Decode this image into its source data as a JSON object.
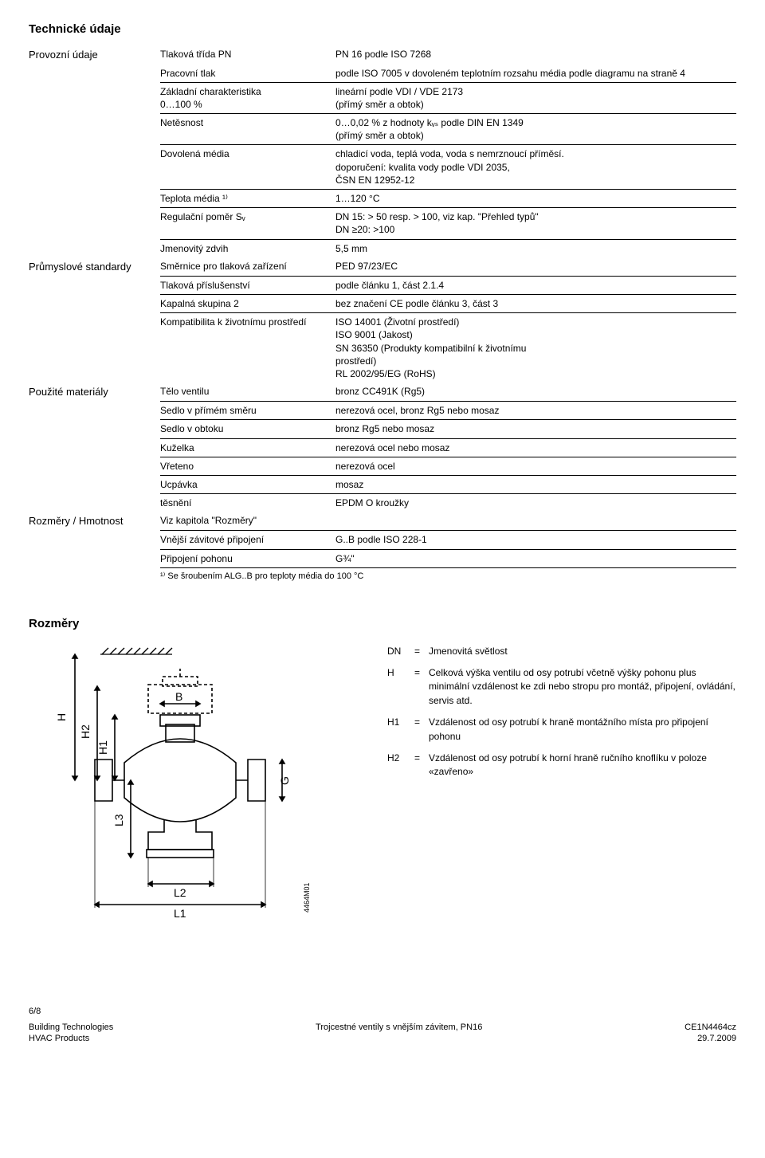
{
  "title_technicke": "Technické údaje",
  "groups": {
    "provozni": {
      "label": "Provozní údaje",
      "rows": [
        {
          "param": "Tlaková třída PN",
          "val": "PN 16 podle ISO 7268",
          "sep": false
        },
        {
          "param": "Pracovní tlak",
          "val": "podle ISO 7005 v dovoleném teplotním rozsahu média podle diagramu na straně 4",
          "sep": true
        },
        {
          "param": "Základní charakteristika\n0…100 %",
          "val": "lineární podle VDI / VDE 2173\n(přímý směr a obtok)",
          "sep": true
        },
        {
          "param": "Netěsnost",
          "val": "0…0,02 % z hodnoty kᵥₛ podle DIN EN 1349\n(přímý směr a obtok)",
          "sep": true
        },
        {
          "param": "Dovolená média",
          "val": "chladicí voda, teplá voda, voda s nemrznoucí příměsí.\ndoporučení: kvalita vody podle VDI 2035,\nČSN EN 12952-12",
          "sep": true
        },
        {
          "param": "Teplota média ¹⁾",
          "val": "1…120 °C",
          "sep": true
        },
        {
          "param": "Regulační poměr Sᵥ",
          "val": "DN 15:      > 50 resp. > 100, viz kap. \"Přehled typů\"\nDN ≥20:    >100",
          "sep": true
        },
        {
          "param": "Jmenovitý zdvih",
          "val": "5,5 mm",
          "sep": false
        }
      ]
    },
    "prumyslove": {
      "label": "Průmyslové standardy",
      "rows": [
        {
          "param": "Směrnice pro tlaková zařízení",
          "val": "PED 97/23/EC",
          "sep": true
        },
        {
          "param": "Tlaková příslušenství",
          "val": "podle článku 1, část 2.1.4",
          "sep": true
        },
        {
          "param": "Kapalná skupina 2",
          "val": "bez značení CE podle článku 3, část 3",
          "sep": true
        },
        {
          "param": "Kompatibilita k životnímu prostředí",
          "val": "ISO 14001 (Životní prostředí)\nISO 9001 (Jakost)\nSN 36350 (Produkty kompatibilní k životnímu\n       prostředí)\nRL 2002/95/EG (RoHS)",
          "sep": false
        }
      ]
    },
    "materialy": {
      "label": "Použité materiály",
      "rows": [
        {
          "param": "Tělo ventilu",
          "val": "bronz CC491K (Rg5)",
          "sep": true
        },
        {
          "param": "Sedlo v přímém směru",
          "val": "nerezová ocel, bronz Rg5 nebo mosaz",
          "sep": true
        },
        {
          "param": "Sedlo v obtoku",
          "val": "bronz Rg5 nebo mosaz",
          "sep": true
        },
        {
          "param": "Kuželka",
          "val": "nerezová ocel nebo mosaz",
          "sep": true
        },
        {
          "param": "Vřeteno",
          "val": "nerezová ocel",
          "sep": true
        },
        {
          "param": "Ucpávka",
          "val": "mosaz",
          "sep": true
        },
        {
          "param": "            těsnění",
          "val": "EPDM O kroužky",
          "sep": false
        }
      ]
    },
    "rozmery": {
      "label": "Rozměry / Hmotnost",
      "rows": [
        {
          "param": "Viz kapitola \"Rozměry\"",
          "val": "",
          "sep": true
        },
        {
          "param": "Vnější závitové připojení",
          "val": "G..B podle ISO 228-1",
          "sep": true
        },
        {
          "param": "Připojení pohonu",
          "val": "G¾\"",
          "sep": true
        }
      ],
      "footnote": "¹⁾   Se šroubením ALG..B pro teploty média do 100 °C"
    }
  },
  "dim_title": "Rozměry",
  "dim_labels": {
    "H": "H",
    "H1": "H1",
    "H2": "H2",
    "B": "B",
    "G": "G",
    "L1": "L1",
    "L2": "L2",
    "L3": "L3",
    "code": "4464M01"
  },
  "dim_legend": [
    {
      "label": "DN",
      "text": "Jmenovitá světlost"
    },
    {
      "label": "H",
      "text": "Celková výška ventilu od osy potrubí včetně výšky pohonu plus minimální vzdálenost ke zdi nebo stropu pro montáž, připojení, ovládání, servis atd."
    },
    {
      "label": "H1",
      "text": "Vzdálenost od osy potrubí k hraně montážního místa pro připojení pohonu"
    },
    {
      "label": "H2",
      "text": "Vzdálenost od osy potrubí k horní hraně ručního knoflíku v poloze «zavřeno»"
    }
  ],
  "footer": {
    "page": "6/8",
    "left1": "Building Technologies",
    "left2": "HVAC Products",
    "center": "Trojcestné ventily s vnějším závitem, PN16",
    "right1": "CE1N4464cz",
    "right2": "29.7.2009"
  },
  "colors": {
    "text": "#000000",
    "line": "#000000",
    "bg": "#ffffff"
  }
}
